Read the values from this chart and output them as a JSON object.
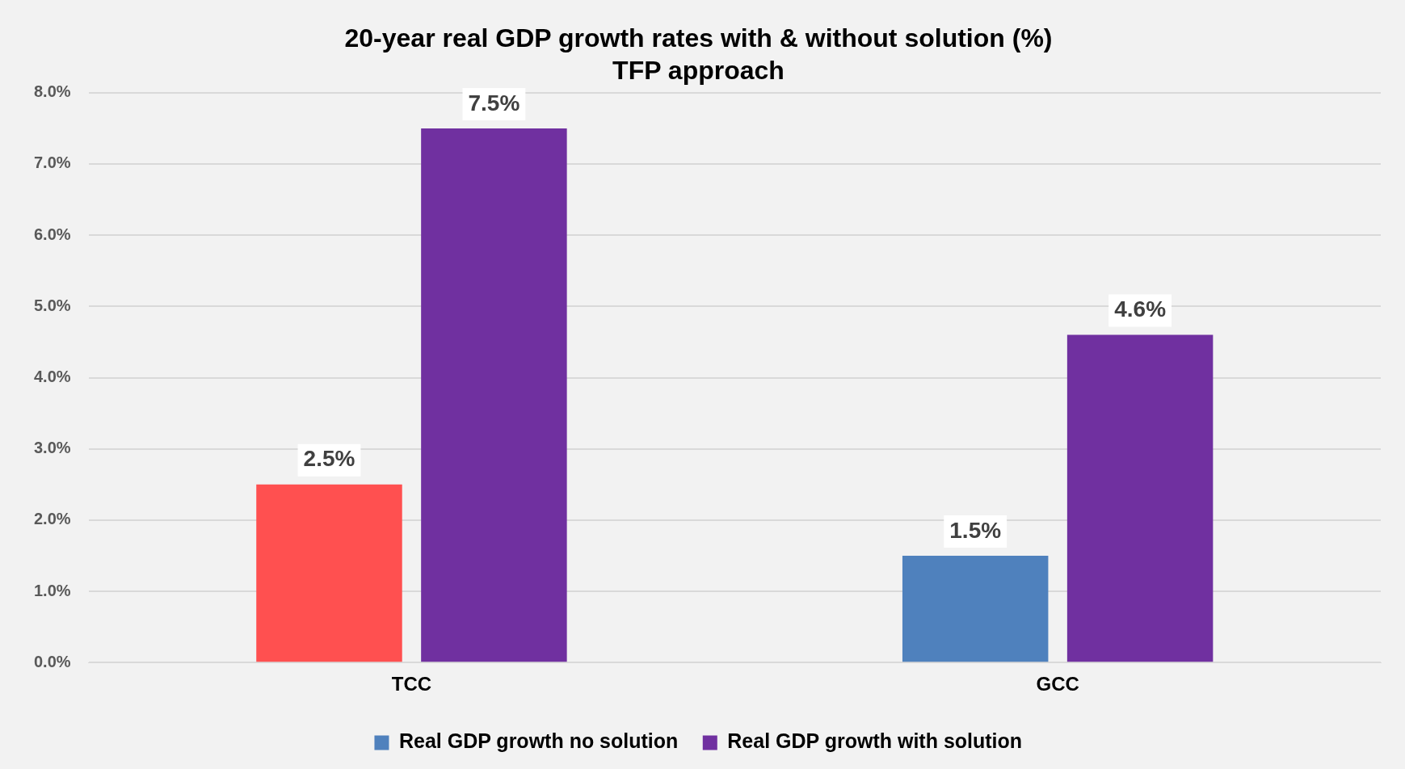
{
  "chart_data": {
    "type": "bar",
    "title": "20-year real GDP growth rates with & without solution (%)",
    "subtitle": "TFP approach",
    "categories": [
      "TCC",
      "GCC"
    ],
    "series": [
      {
        "name": "Real GDP growth no solution",
        "color": "#4f81bd",
        "colors": [
          "#ff5050",
          "#4f81bd"
        ],
        "values": [
          2.5,
          1.5
        ],
        "value_labels": [
          "2.5%",
          "1.5%"
        ]
      },
      {
        "name": "Real GDP growth with solution",
        "color": "#7030a0",
        "values": [
          7.5,
          4.6
        ],
        "value_labels": [
          "7.5%",
          "4.6%"
        ]
      }
    ],
    "ylim": [
      0,
      8
    ],
    "yticks": [
      {
        "value": 0,
        "label": "0.0%"
      },
      {
        "value": 1,
        "label": "1.0%"
      },
      {
        "value": 2,
        "label": "2.0%"
      },
      {
        "value": 3,
        "label": "3.0%"
      },
      {
        "value": 4,
        "label": "4.0%"
      },
      {
        "value": 5,
        "label": "5.0%"
      },
      {
        "value": 6,
        "label": "6.0%"
      },
      {
        "value": 7,
        "label": "7.0%"
      },
      {
        "value": 8,
        "label": "8.0%"
      }
    ],
    "grid": "y",
    "legend": "bottom"
  }
}
